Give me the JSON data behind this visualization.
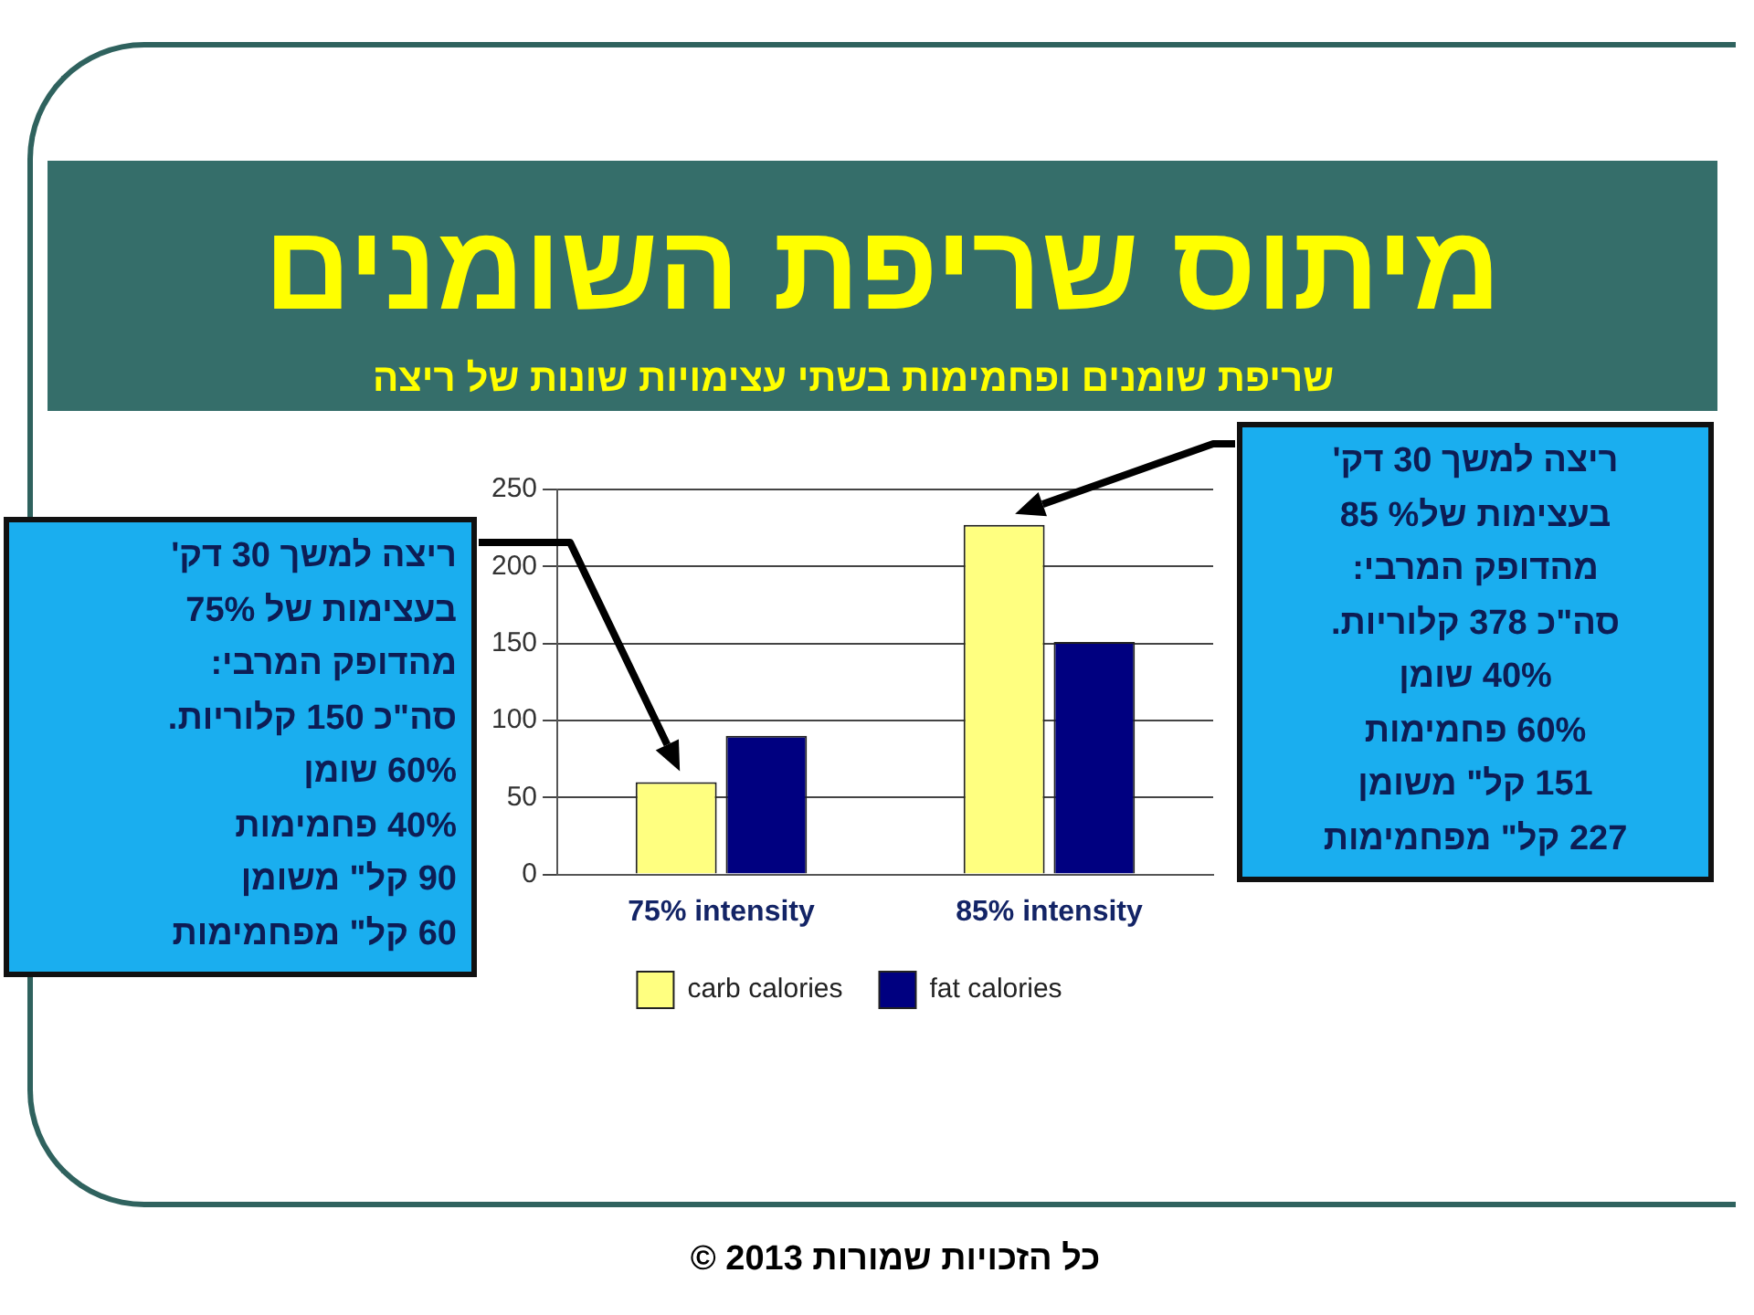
{
  "chart_data": {
    "type": "bar",
    "title": "מיתוס שריפת השומנים",
    "subtitle": "שריפת שומנים ופחמימות בשתי עצימויות שונות של ריצה",
    "categories": [
      "75% intensity",
      "85% intensity"
    ],
    "series": [
      {
        "name": "carb calories",
        "color": "#ffff80",
        "values": [
          60,
          227
        ]
      },
      {
        "name": "fat calories",
        "color": "#000080",
        "values": [
          90,
          151
        ]
      }
    ],
    "ylim": [
      0,
      250
    ],
    "yticks": [
      0,
      50,
      100,
      150,
      200,
      250
    ],
    "grid": "y",
    "legend": "bottom",
    "annotations": [
      "ריצה למשך 30 דק'\nבעצימות של 75%\nמהדופק המרבי:\nסה\"כ   150 קלוריות.\n60% שומן\n40% פחמימות\n90  קל\" משומן\n60  קל\" מפחמימות",
      "ריצה למשך 30 דק'\nבעצימות של% 85\nמהדופק המרבי:\nסה\"כ   378 קלוריות.\n40% שומן\n60% פחמימות\n151 קל\" משומן\n227  קל\" מפחמימות",
      "כל הזכויות שמורות 2013 ©"
    ]
  }
}
